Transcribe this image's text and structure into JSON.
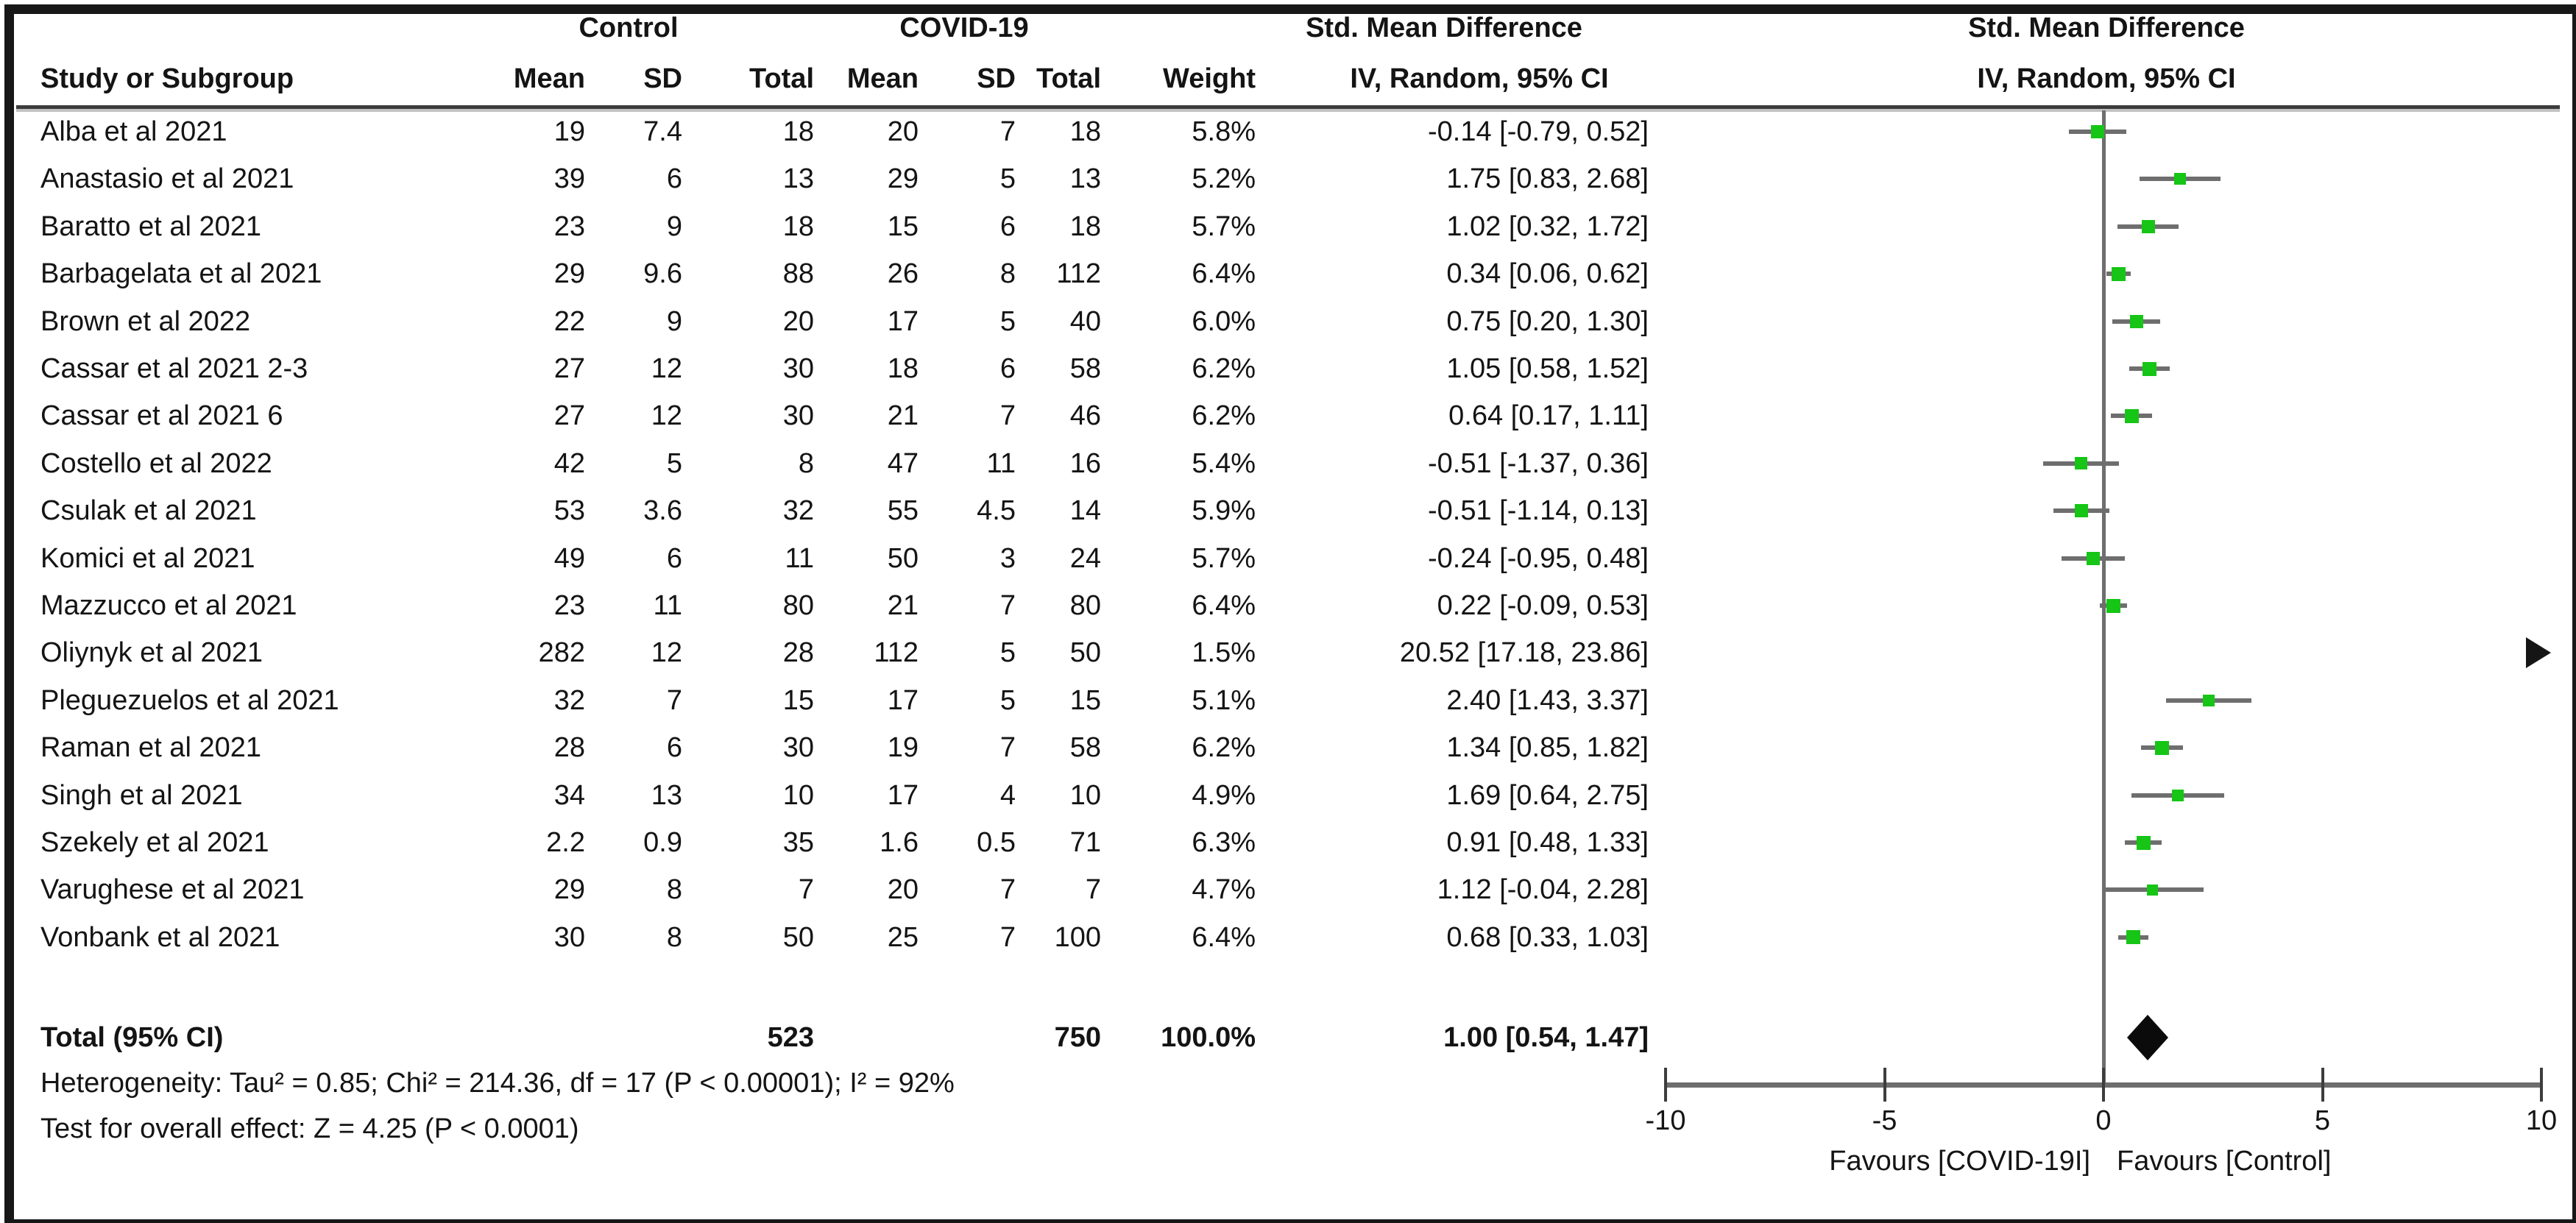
{
  "header": {
    "group_control": "Control",
    "group_covid": "COVID-19",
    "effect": "Std. Mean Difference",
    "method": "IV, Random, 95% CI",
    "study": "Study or Subgroup",
    "mean": "Mean",
    "sd": "SD",
    "total": "Total",
    "weight": "Weight"
  },
  "studies": [
    {
      "name": "Alba et al 2021",
      "control": {
        "mean": "19",
        "sd": "7.4",
        "total": "18"
      },
      "covid": {
        "mean": "20",
        "sd": "7",
        "total": "18"
      },
      "weight": "5.8%",
      "ci_text": "-0.14 [-0.79, 0.52]",
      "est": -0.14,
      "lo": -0.79,
      "hi": 0.52,
      "offscale_right": false
    },
    {
      "name": "Anastasio et al 2021",
      "control": {
        "mean": "39",
        "sd": "6",
        "total": "13"
      },
      "covid": {
        "mean": "29",
        "sd": "5",
        "total": "13"
      },
      "weight": "5.2%",
      "ci_text": "1.75 [0.83, 2.68]",
      "est": 1.75,
      "lo": 0.83,
      "hi": 2.68,
      "offscale_right": false
    },
    {
      "name": "Baratto et al 2021",
      "control": {
        "mean": "23",
        "sd": "9",
        "total": "18"
      },
      "covid": {
        "mean": "15",
        "sd": "6",
        "total": "18"
      },
      "weight": "5.7%",
      "ci_text": "1.02 [0.32, 1.72]",
      "est": 1.02,
      "lo": 0.32,
      "hi": 1.72,
      "offscale_right": false
    },
    {
      "name": "Barbagelata et al 2021",
      "control": {
        "mean": "29",
        "sd": "9.6",
        "total": "88"
      },
      "covid": {
        "mean": "26",
        "sd": "8",
        "total": "112"
      },
      "weight": "6.4%",
      "ci_text": "0.34 [0.06, 0.62]",
      "est": 0.34,
      "lo": 0.06,
      "hi": 0.62,
      "offscale_right": false
    },
    {
      "name": "Brown et al 2022",
      "control": {
        "mean": "22",
        "sd": "9",
        "total": "20"
      },
      "covid": {
        "mean": "17",
        "sd": "5",
        "total": "40"
      },
      "weight": "6.0%",
      "ci_text": "0.75 [0.20, 1.30]",
      "est": 0.75,
      "lo": 0.2,
      "hi": 1.3,
      "offscale_right": false
    },
    {
      "name": "Cassar et al 2021 2-3",
      "control": {
        "mean": "27",
        "sd": "12",
        "total": "30"
      },
      "covid": {
        "mean": "18",
        "sd": "6",
        "total": "58"
      },
      "weight": "6.2%",
      "ci_text": "1.05 [0.58, 1.52]",
      "est": 1.05,
      "lo": 0.58,
      "hi": 1.52,
      "offscale_right": false
    },
    {
      "name": "Cassar et al 2021 6",
      "control": {
        "mean": "27",
        "sd": "12",
        "total": "30"
      },
      "covid": {
        "mean": "21",
        "sd": "7",
        "total": "46"
      },
      "weight": "6.2%",
      "ci_text": "0.64 [0.17, 1.11]",
      "est": 0.64,
      "lo": 0.17,
      "hi": 1.11,
      "offscale_right": false
    },
    {
      "name": "Costello et al 2022",
      "control": {
        "mean": "42",
        "sd": "5",
        "total": "8"
      },
      "covid": {
        "mean": "47",
        "sd": "11",
        "total": "16"
      },
      "weight": "5.4%",
      "ci_text": "-0.51 [-1.37, 0.36]",
      "est": -0.51,
      "lo": -1.37,
      "hi": 0.36,
      "offscale_right": false
    },
    {
      "name": "Csulak et al 2021",
      "control": {
        "mean": "53",
        "sd": "3.6",
        "total": "32"
      },
      "covid": {
        "mean": "55",
        "sd": "4.5",
        "total": "14"
      },
      "weight": "5.9%",
      "ci_text": "-0.51 [-1.14, 0.13]",
      "est": -0.51,
      "lo": -1.14,
      "hi": 0.13,
      "offscale_right": false
    },
    {
      "name": "Komici et al 2021",
      "control": {
        "mean": "49",
        "sd": "6",
        "total": "11"
      },
      "covid": {
        "mean": "50",
        "sd": "3",
        "total": "24"
      },
      "weight": "5.7%",
      "ci_text": "-0.24 [-0.95, 0.48]",
      "est": -0.24,
      "lo": -0.95,
      "hi": 0.48,
      "offscale_right": false
    },
    {
      "name": "Mazzucco et al 2021",
      "control": {
        "mean": "23",
        "sd": "11",
        "total": "80"
      },
      "covid": {
        "mean": "21",
        "sd": "7",
        "total": "80"
      },
      "weight": "6.4%",
      "ci_text": "0.22 [-0.09, 0.53]",
      "est": 0.22,
      "lo": -0.09,
      "hi": 0.53,
      "offscale_right": false
    },
    {
      "name": "Oliynyk et al 2021",
      "control": {
        "mean": "282",
        "sd": "12",
        "total": "28"
      },
      "covid": {
        "mean": "112",
        "sd": "5",
        "total": "50"
      },
      "weight": "1.5%",
      "ci_text": "20.52 [17.18, 23.86]",
      "est": 20.52,
      "lo": 17.18,
      "hi": 23.86,
      "offscale_right": true
    },
    {
      "name": "Pleguezuelos et al 2021",
      "control": {
        "mean": "32",
        "sd": "7",
        "total": "15"
      },
      "covid": {
        "mean": "17",
        "sd": "5",
        "total": "15"
      },
      "weight": "5.1%",
      "ci_text": "2.40 [1.43, 3.37]",
      "est": 2.4,
      "lo": 1.43,
      "hi": 3.37,
      "offscale_right": false
    },
    {
      "name": "Raman et al 2021",
      "control": {
        "mean": "28",
        "sd": "6",
        "total": "30"
      },
      "covid": {
        "mean": "19",
        "sd": "7",
        "total": "58"
      },
      "weight": "6.2%",
      "ci_text": "1.34 [0.85, 1.82]",
      "est": 1.34,
      "lo": 0.85,
      "hi": 1.82,
      "offscale_right": false
    },
    {
      "name": "Singh et al 2021",
      "control": {
        "mean": "34",
        "sd": "13",
        "total": "10"
      },
      "covid": {
        "mean": "17",
        "sd": "4",
        "total": "10"
      },
      "weight": "4.9%",
      "ci_text": "1.69 [0.64, 2.75]",
      "est": 1.69,
      "lo": 0.64,
      "hi": 2.75,
      "offscale_right": false
    },
    {
      "name": "Szekely et al 2021",
      "control": {
        "mean": "2.2",
        "sd": "0.9",
        "total": "35"
      },
      "covid": {
        "mean": "1.6",
        "sd": "0.5",
        "total": "71"
      },
      "weight": "6.3%",
      "ci_text": "0.91 [0.48, 1.33]",
      "est": 0.91,
      "lo": 0.48,
      "hi": 1.33,
      "offscale_right": false
    },
    {
      "name": "Varughese et al 2021",
      "control": {
        "mean": "29",
        "sd": "8",
        "total": "7"
      },
      "covid": {
        "mean": "20",
        "sd": "7",
        "total": "7"
      },
      "weight": "4.7%",
      "ci_text": "1.12 [-0.04, 2.28]",
      "est": 1.12,
      "lo": -0.04,
      "hi": 2.28,
      "offscale_right": false
    },
    {
      "name": "Vonbank et al 2021",
      "control": {
        "mean": "30",
        "sd": "8",
        "total": "50"
      },
      "covid": {
        "mean": "25",
        "sd": "7",
        "total": "100"
      },
      "weight": "6.4%",
      "ci_text": "0.68 [0.33, 1.03]",
      "est": 0.68,
      "lo": 0.33,
      "hi": 1.03,
      "offscale_right": false
    }
  ],
  "total": {
    "label": "Total (95% CI)",
    "control_total": "523",
    "covid_total": "750",
    "weight": "100.0%",
    "ci_text": "1.00 [0.54, 1.47]",
    "est": 1.0,
    "lo": 0.54,
    "hi": 1.47
  },
  "heterogeneity": "Heterogeneity: Tau² = 0.85; Chi² = 214.36, df = 17 (P < 0.00001); I² = 92%",
  "overall_effect": "Test for overall effect: Z = 4.25 (P < 0.0001)",
  "axis": {
    "min": -10,
    "max": 10,
    "ticks": [
      "-10",
      "-5",
      "0",
      "5",
      "10"
    ]
  },
  "favours_left": "Favours [COVID-19I]",
  "favours_right": "Favours [Control]",
  "colors": {
    "marker_green": "#16c516",
    "ci_line": "#6e6e6e",
    "zero_line": "#6e6e6e",
    "diamond": "#0b0b0b",
    "arrow": "#151515",
    "text": "#141414"
  },
  "chart_data": {
    "type": "scatter",
    "subtype": "forest_plot",
    "title": "Std. Mean Difference",
    "method_label": "IV, Random, 95% CI",
    "xlim": [
      -10,
      10
    ],
    "x_ticks": [
      -10,
      -5,
      0,
      5,
      10
    ],
    "grid": false,
    "annotation_left": "Favours [COVID-19I]",
    "annotation_right": "Favours [Control]",
    "points": [
      {
        "label": "Alba et al 2021",
        "est": -0.14,
        "lo": -0.79,
        "hi": 0.52,
        "weight_pct": 5.8
      },
      {
        "label": "Anastasio et al 2021",
        "est": 1.75,
        "lo": 0.83,
        "hi": 2.68,
        "weight_pct": 5.2
      },
      {
        "label": "Baratto et al 2021",
        "est": 1.02,
        "lo": 0.32,
        "hi": 1.72,
        "weight_pct": 5.7
      },
      {
        "label": "Barbagelata et al 2021",
        "est": 0.34,
        "lo": 0.06,
        "hi": 0.62,
        "weight_pct": 6.4
      },
      {
        "label": "Brown et al 2022",
        "est": 0.75,
        "lo": 0.2,
        "hi": 1.3,
        "weight_pct": 6.0
      },
      {
        "label": "Cassar et al 2021 2-3",
        "est": 1.05,
        "lo": 0.58,
        "hi": 1.52,
        "weight_pct": 6.2
      },
      {
        "label": "Cassar et al 2021 6",
        "est": 0.64,
        "lo": 0.17,
        "hi": 1.11,
        "weight_pct": 6.2
      },
      {
        "label": "Costello et al 2022",
        "est": -0.51,
        "lo": -1.37,
        "hi": 0.36,
        "weight_pct": 5.4
      },
      {
        "label": "Csulak et al 2021",
        "est": -0.51,
        "lo": -1.14,
        "hi": 0.13,
        "weight_pct": 5.9
      },
      {
        "label": "Komici et al 2021",
        "est": -0.24,
        "lo": -0.95,
        "hi": 0.48,
        "weight_pct": 5.7
      },
      {
        "label": "Mazzucco et al 2021",
        "est": 0.22,
        "lo": -0.09,
        "hi": 0.53,
        "weight_pct": 6.4
      },
      {
        "label": "Oliynyk et al 2021",
        "est": 20.52,
        "lo": 17.18,
        "hi": 23.86,
        "weight_pct": 1.5
      },
      {
        "label": "Pleguezuelos et al 2021",
        "est": 2.4,
        "lo": 1.43,
        "hi": 3.37,
        "weight_pct": 5.1
      },
      {
        "label": "Raman et al 2021",
        "est": 1.34,
        "lo": 0.85,
        "hi": 1.82,
        "weight_pct": 6.2
      },
      {
        "label": "Singh et al 2021",
        "est": 1.69,
        "lo": 0.64,
        "hi": 2.75,
        "weight_pct": 4.9
      },
      {
        "label": "Szekely et al 2021",
        "est": 0.91,
        "lo": 0.48,
        "hi": 1.33,
        "weight_pct": 6.3
      },
      {
        "label": "Varughese et al 2021",
        "est": 1.12,
        "lo": -0.04,
        "hi": 2.28,
        "weight_pct": 4.7
      },
      {
        "label": "Vonbank et al 2021",
        "est": 0.68,
        "lo": 0.33,
        "hi": 1.03,
        "weight_pct": 6.4
      }
    ],
    "summary": {
      "label": "Total (95% CI)",
      "est": 1.0,
      "lo": 0.54,
      "hi": 1.47
    },
    "offscale_right_labels": [
      "Oliynyk et al 2021"
    ]
  }
}
